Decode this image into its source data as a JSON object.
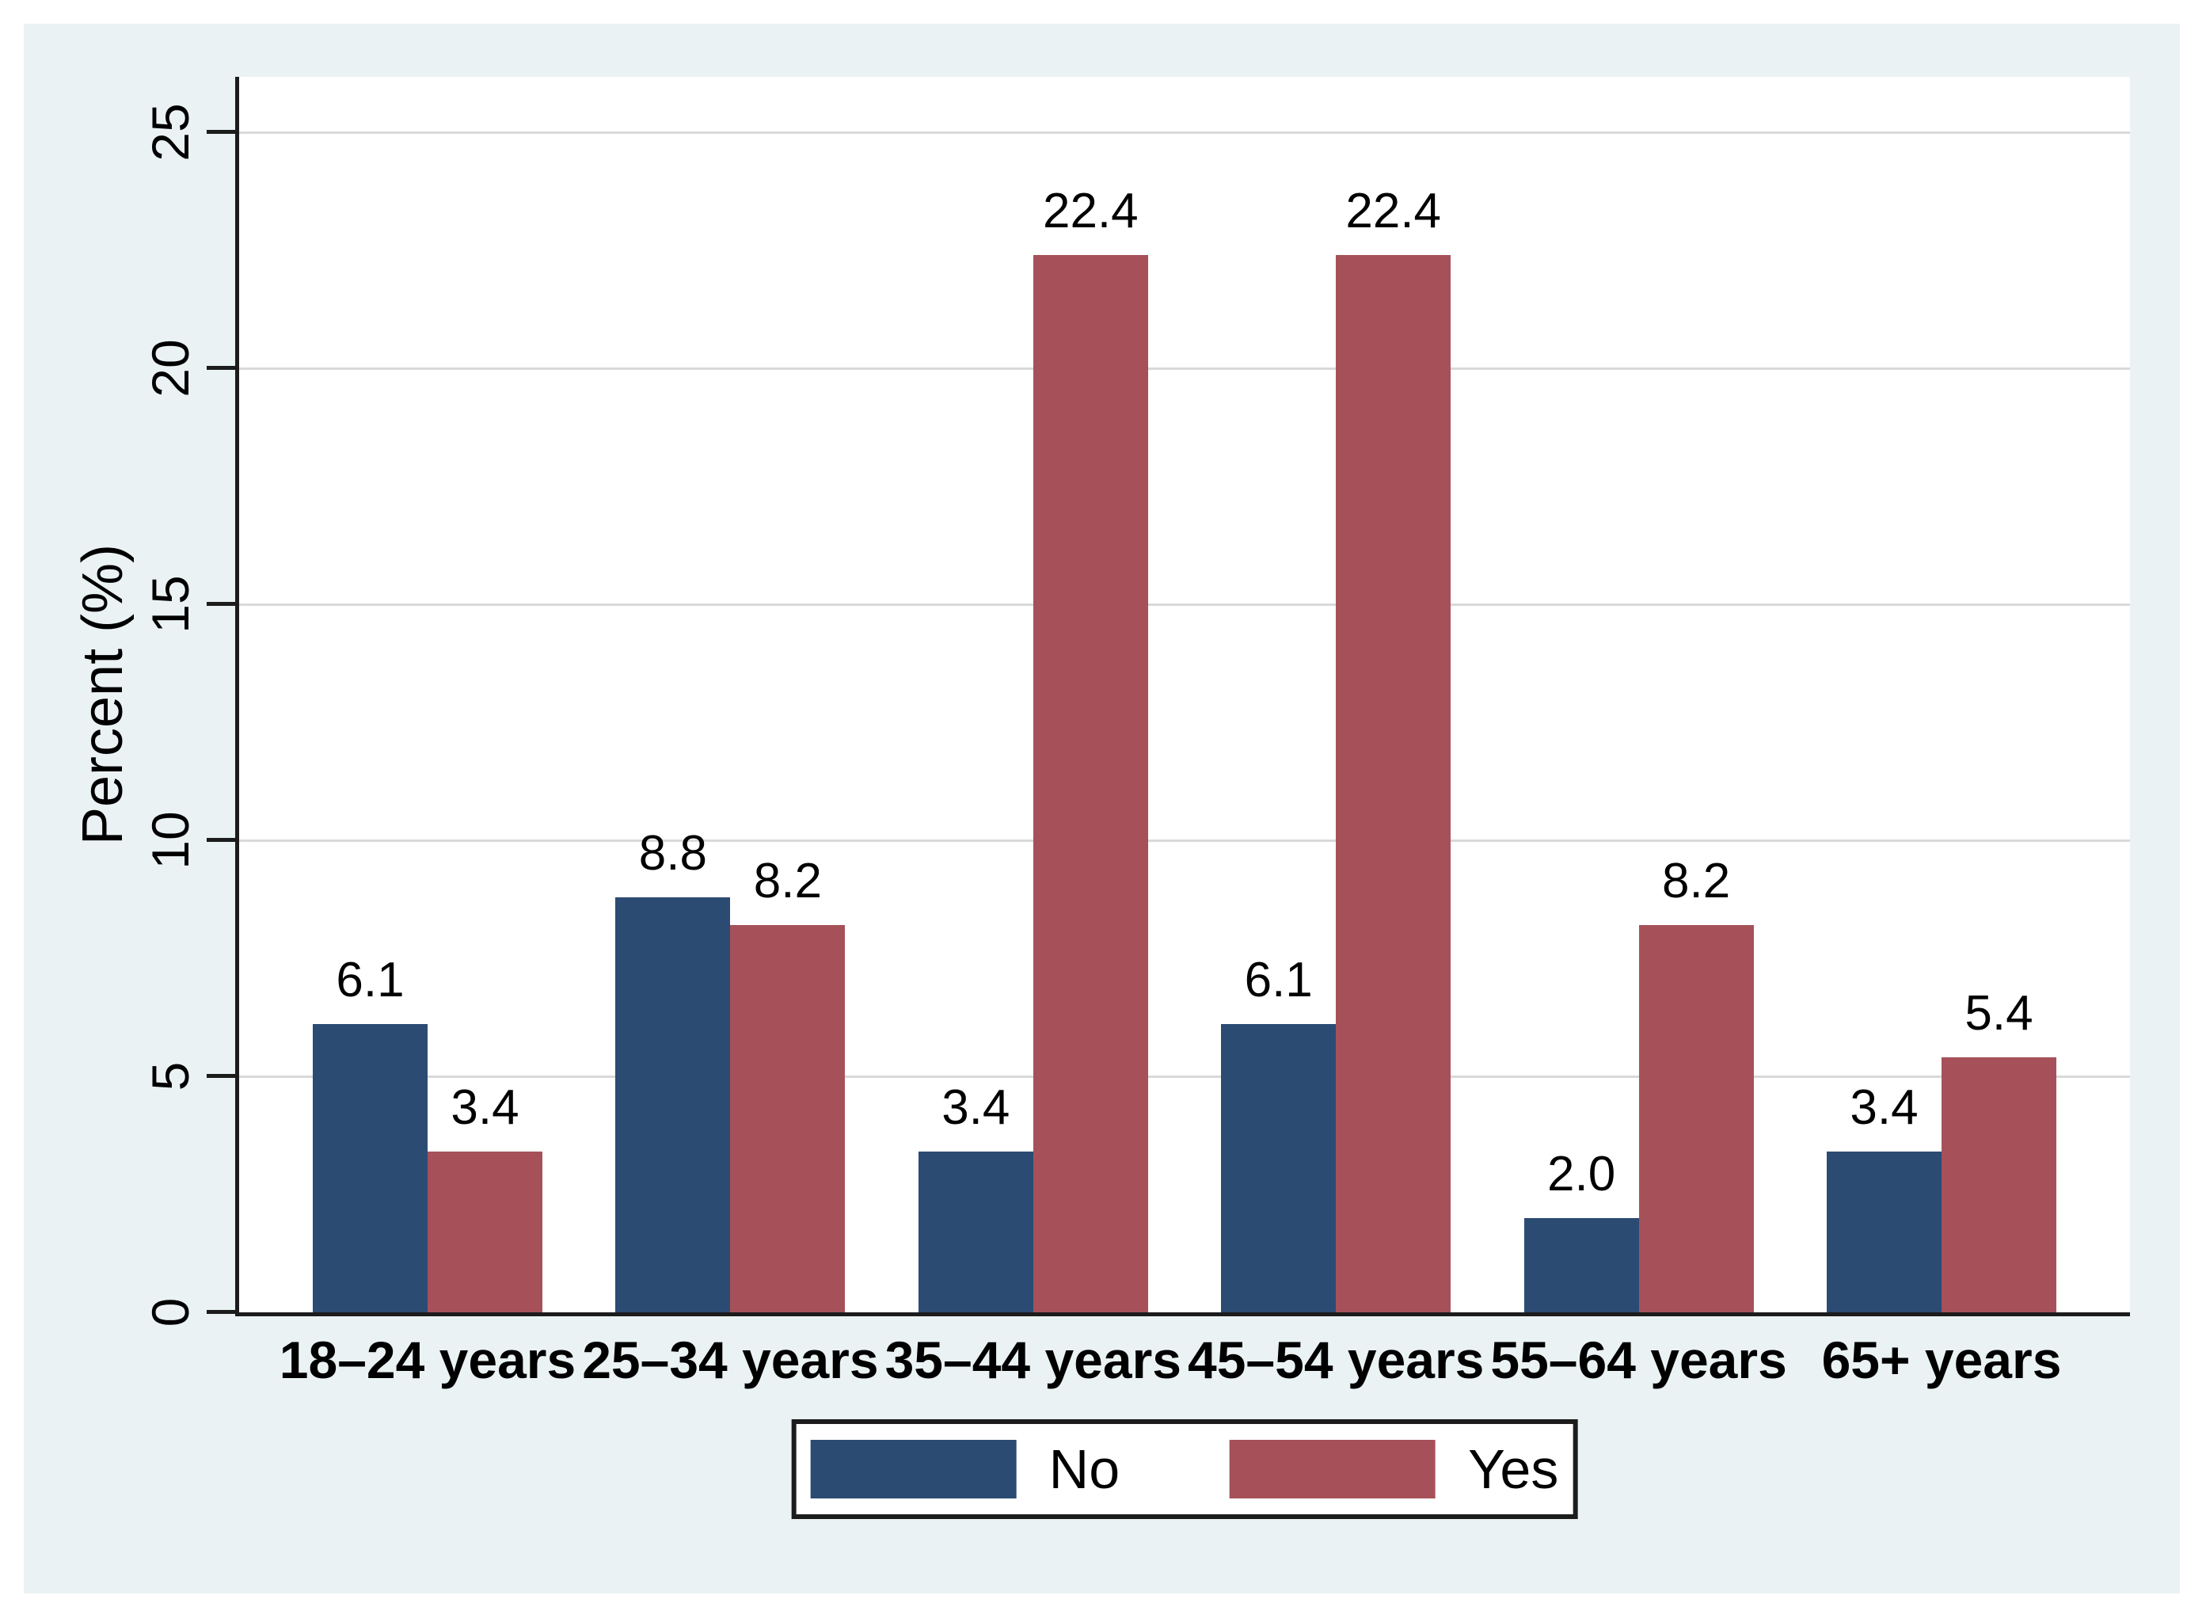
{
  "colors": {
    "page_bg": "#ffffff",
    "panel_bg": "#eaf2f3",
    "plot_bg": "#ffffff",
    "axis": "#1c1c1c",
    "grid": "#d9d9d9",
    "no_series": "#2c4b73",
    "yes_series": "#a6515a"
  },
  "chart_data": {
    "type": "bar",
    "title": "",
    "xlabel": "",
    "ylabel": "Percent (%)",
    "ylim": [
      0,
      25
    ],
    "yticks": [
      0,
      5,
      10,
      15,
      20,
      25
    ],
    "grid": true,
    "legend_position": "bottom-center",
    "bar_value_labels": true,
    "categories": [
      "18–24 years",
      "25–34 years",
      "35–44 years",
      "45–54 years",
      "55–64 years",
      "65+ years"
    ],
    "series": [
      {
        "name": "No",
        "color": "#2c4b73",
        "values": [
          6.1,
          8.8,
          3.4,
          6.1,
          2.0,
          3.4
        ],
        "labels": [
          "6.1",
          "8.8",
          "3.4",
          "6.1",
          "2.0",
          "3.4"
        ]
      },
      {
        "name": "Yes",
        "color": "#a6515a",
        "values": [
          3.4,
          8.2,
          22.4,
          22.4,
          8.2,
          5.4
        ],
        "labels": [
          "3.4",
          "8.2",
          "22.4",
          "22.4",
          "8.2",
          "5.4"
        ]
      }
    ]
  }
}
